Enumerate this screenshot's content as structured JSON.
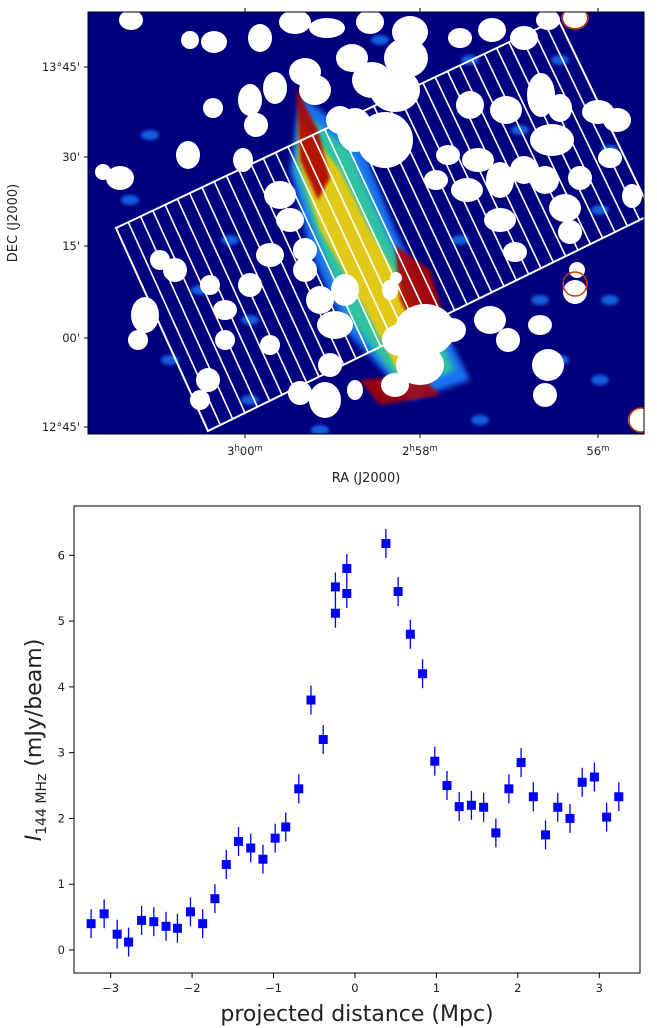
{
  "top_panel": {
    "xlabel": "RA (J2000)",
    "ylabel": "DEC (J2000)",
    "yticks": [
      "13°45'",
      "30'",
      "15'",
      "00'",
      "12°45'"
    ],
    "xticks": [
      {
        "main": "3",
        "u1": "h",
        "mid": "00",
        "u2": "m"
      },
      {
        "main": "2",
        "u1": "h",
        "mid": "58",
        "u2": "m"
      },
      {
        "main": "56",
        "u1": "m",
        "mid": "",
        "u2": ""
      }
    ],
    "colors": {
      "background": "#00007f",
      "source_mask": "#ffffff",
      "slice_grid": "#ffffff",
      "emission_hot": "#b00000",
      "emission_warm": "#ffcc00",
      "emission_mid": "#33cc99",
      "emission_cool": "#1f7fff"
    },
    "slice_count": 36
  },
  "chart_data": {
    "type": "scatter",
    "title": "",
    "xlabel": "projected distance (Mpc)",
    "ylabel_parts": {
      "symbol": "I",
      "subscript": "144 MHz",
      "unit": " (mJy/beam)"
    },
    "xlim": [
      -3.45,
      3.5
    ],
    "ylim": [
      -0.35,
      6.75
    ],
    "xticks": [
      -3,
      -2,
      -1,
      0,
      1,
      2,
      3
    ],
    "xtick_labels": [
      "−3",
      "−2",
      "−1",
      "0",
      "1",
      "2",
      "3"
    ],
    "yticks": [
      0,
      1,
      2,
      3,
      4,
      5,
      6
    ],
    "ytick_labels": [
      "0",
      "1",
      "2",
      "3",
      "4",
      "5",
      "6"
    ],
    "marker": "square",
    "color": "#0000ff",
    "grid": false,
    "series": [
      {
        "x": [
          -3.24,
          -3.08,
          -2.92,
          -2.78,
          -2.62,
          -2.47,
          -2.32,
          -2.18,
          -2.02,
          -1.87,
          -1.72,
          -1.58,
          -1.43,
          -1.28,
          -1.13,
          -0.98,
          -0.85,
          -0.69,
          -0.54,
          -0.39,
          -0.24,
          -0.24,
          -0.1,
          -0.1,
          0.38,
          0.53,
          0.68,
          0.83,
          0.98,
          1.13,
          1.28,
          1.43,
          1.58,
          1.73,
          1.89,
          2.04,
          2.19,
          2.34,
          2.49,
          2.64,
          2.79,
          2.94,
          3.09,
          3.24
        ],
        "y": [
          0.4,
          0.55,
          0.24,
          0.12,
          0.45,
          0.43,
          0.36,
          0.33,
          0.58,
          0.4,
          0.78,
          1.3,
          1.65,
          1.55,
          1.38,
          1.7,
          1.87,
          2.45,
          3.8,
          3.2,
          5.52,
          5.12,
          5.8,
          5.42,
          6.18,
          5.45,
          4.8,
          4.2,
          2.87,
          2.5,
          2.18,
          2.2,
          2.17,
          1.78,
          2.45,
          2.85,
          2.33,
          1.75,
          2.17,
          2.0,
          2.55,
          2.63,
          2.02,
          2.33
        ],
        "yerr": 0.22
      }
    ]
  }
}
